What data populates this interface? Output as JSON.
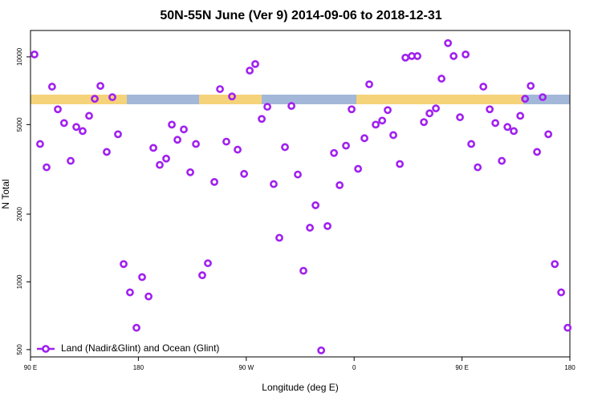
{
  "chart_data": {
    "type": "scatter",
    "title": "50N-55N June (Ver 9)   2014-09-06 to 2018-12-31",
    "x_label": "Longitude (deg E)",
    "y_label": "N Total",
    "xlim": [
      90,
      540
    ],
    "ylim": [
      464,
      13100
    ],
    "log_y": true,
    "xticks": [
      {
        "value": 90,
        "label": "90 E"
      },
      180,
      {
        "value": 270,
        "label": "90 W"
      },
      {
        "value": 360,
        "label": "0"
      },
      {
        "value": 450,
        "label": "90 E"
      },
      {
        "value": 540,
        "label": "180"
      }
    ],
    "yticks": [
      500,
      1000,
      2000,
      5000,
      10000
    ],
    "legend": "bottom-left",
    "series": [
      {
        "name": "Land (Nadir&Glint) and Ocean (Glint)",
        "color": "#a020f0",
        "x": [
          93.3,
          98,
          103.4,
          108,
          112.8,
          118,
          123.5,
          128.2,
          133.5,
          138.9,
          143.6,
          148.3,
          153.6,
          158.3,
          163,
          167.7,
          173,
          178.4,
          183.1,
          188.5,
          192.5,
          197.8,
          203.2,
          207.9,
          212.6,
          217.9,
          223.3,
          228,
          233.3,
          238,
          243.4,
          248.1,
          253.4,
          258.1,
          262.8,
          268.2,
          272.9,
          277.5,
          282.9,
          287.6,
          292.9,
          297.6,
          302.3,
          307.7,
          313,
          317.7,
          323.1,
          327.8,
          332.5,
          337.8,
          343.2,
          347.9,
          353.2,
          357.9,
          363.3,
          368.6,
          372.6,
          378,
          383.4,
          388,
          392.7,
          398.1,
          402.8,
          408.1,
          412.8,
          418.2,
          422.9,
          428.2,
          432.9,
          438.3,
          443,
          448.3,
          453,
          457.7,
          463.1,
          467.8,
          473.1,
          477.8,
          483.2,
          487.9,
          493.2,
          498.6,
          502.6,
          507.3,
          512.6,
          517.3,
          522,
          527.4,
          532.7,
          538.1
        ],
        "values": [
          10250,
          4100,
          3230,
          7370,
          5850,
          5080,
          3450,
          4880,
          4680,
          5470,
          6510,
          7430,
          3780,
          6620,
          4530,
          1200,
          898,
          625,
          1050,
          861,
          3940,
          3310,
          3530,
          5000,
          4280,
          4760,
          3070,
          4100,
          1070,
          1210,
          2780,
          7190,
          4200,
          6670,
          3870,
          3020,
          8690,
          9290,
          5300,
          6000,
          2720,
          1570,
          3970,
          6050,
          3000,
          1120,
          1740,
          2190,
          496,
          1770,
          3740,
          2690,
          4030,
          5850,
          3180,
          4350,
          7550,
          5000,
          5210,
          5800,
          4490,
          3340,
          9920,
          10080,
          10080,
          5130,
          5610,
          5900,
          8000,
          11510,
          10080,
          5390,
          10250,
          4100,
          3230,
          7370,
          5850,
          5080,
          3450,
          4880,
          4680,
          5470,
          6510,
          7430,
          3780,
          6620,
          4530,
          1200,
          898,
          625
        ]
      }
    ]
  }
}
